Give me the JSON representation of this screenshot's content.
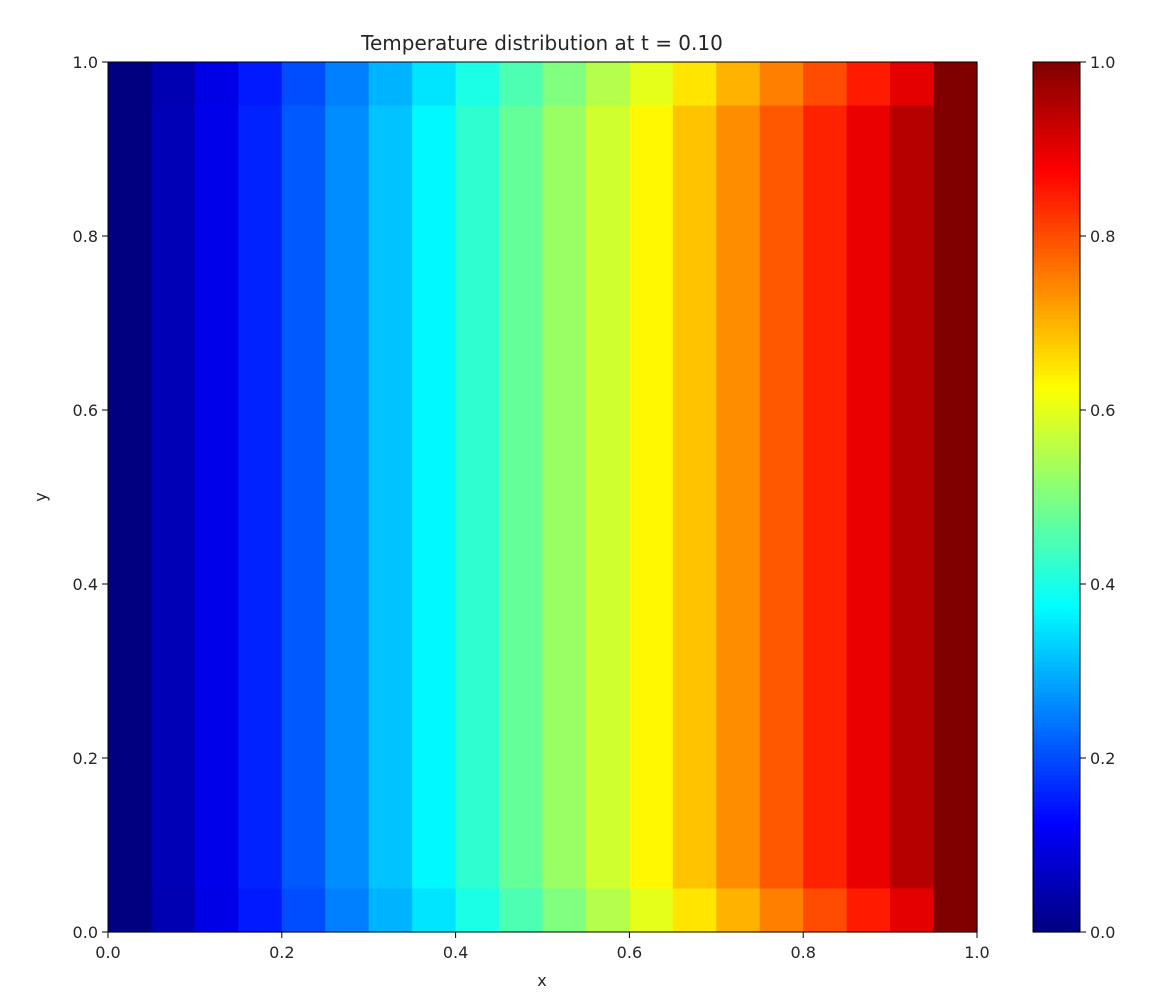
{
  "chart_data": {
    "type": "heatmap",
    "title": "Temperature distribution at t = 0.10",
    "xlabel": "x",
    "ylabel": "y",
    "xlim": [
      0.0,
      1.0
    ],
    "ylim": [
      0.0,
      1.0
    ],
    "x_ticks": [
      "0.0",
      "0.2",
      "0.4",
      "0.6",
      "0.8",
      "1.0"
    ],
    "y_ticks": [
      "0.0",
      "0.2",
      "0.4",
      "0.6",
      "0.8",
      "1.0"
    ],
    "colormap": "jet",
    "colorbar": {
      "range": [
        0.0,
        1.0
      ],
      "ticks": [
        "0.0",
        "0.2",
        "0.4",
        "0.6",
        "0.8",
        "1.0"
      ],
      "placement": "right"
    },
    "grid": false,
    "grid_size": [
      20,
      20
    ],
    "column_values_interior": [
      0.0,
      0.053,
      0.105,
      0.158,
      0.211,
      0.263,
      0.316,
      0.368,
      0.421,
      0.474,
      0.526,
      0.579,
      0.632,
      0.684,
      0.737,
      0.789,
      0.842,
      0.895,
      0.947,
      1.0
    ],
    "column_values_boundary_rows": [
      0.0,
      0.05,
      0.1,
      0.15,
      0.2,
      0.25,
      0.3,
      0.35,
      0.4,
      0.45,
      0.5,
      0.55,
      0.6,
      0.65,
      0.7,
      0.75,
      0.8,
      0.85,
      0.9,
      1.0
    ]
  }
}
